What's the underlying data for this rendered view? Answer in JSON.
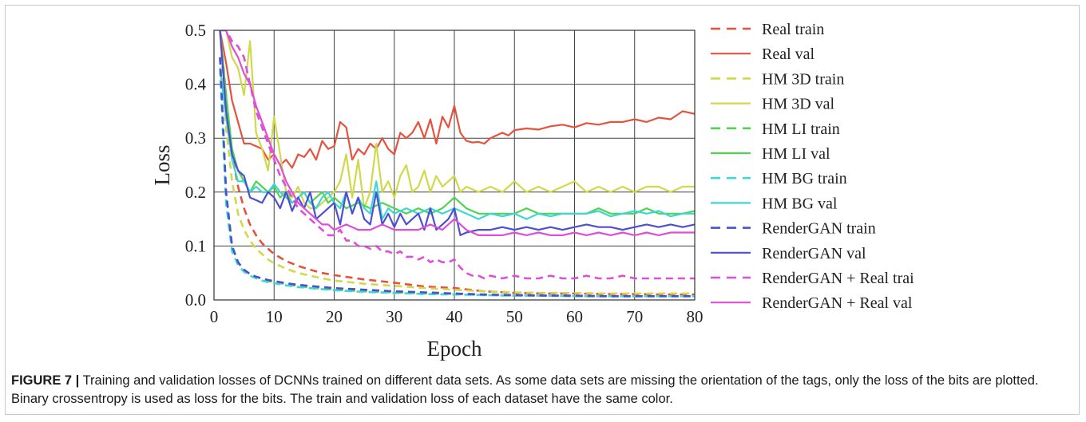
{
  "chart_data": {
    "type": "line",
    "xlabel": "Epoch",
    "ylabel": "Loss",
    "xlim": [
      0,
      80
    ],
    "ylim": [
      0,
      0.5
    ],
    "xticks": [
      0,
      10,
      20,
      30,
      40,
      50,
      60,
      70,
      80
    ],
    "yticks": [
      0.0,
      0.1,
      0.2,
      0.3,
      0.4,
      0.5
    ],
    "grid": true,
    "legend_position": "right-outside",
    "series": [
      {
        "name": "Real train",
        "style": "dashed",
        "color": "#e5533f",
        "x": [
          1,
          2,
          3,
          4,
          5,
          6,
          7,
          8,
          9,
          10,
          12,
          14,
          16,
          18,
          20,
          25,
          30,
          35,
          40,
          45,
          50,
          55,
          60,
          65,
          70,
          75,
          80
        ],
        "y": [
          0.5,
          0.38,
          0.27,
          0.21,
          0.17,
          0.14,
          0.12,
          0.105,
          0.095,
          0.085,
          0.072,
          0.063,
          0.056,
          0.05,
          0.046,
          0.038,
          0.032,
          0.025,
          0.022,
          0.016,
          0.013,
          0.012,
          0.012,
          0.011,
          0.011,
          0.01,
          0.01
        ]
      },
      {
        "name": "Real val",
        "style": "solid",
        "color": "#e5533f",
        "x": [
          1,
          2,
          3,
          4,
          5,
          6,
          7,
          8,
          9,
          10,
          11,
          12,
          13,
          14,
          15,
          16,
          17,
          18,
          19,
          20,
          21,
          22,
          23,
          24,
          25,
          26,
          27,
          28,
          29,
          30,
          31,
          32,
          33,
          34,
          35,
          36,
          37,
          38,
          39,
          40,
          41,
          42,
          43,
          44,
          45,
          46,
          47,
          48,
          49,
          50,
          52,
          54,
          56,
          58,
          60,
          62,
          64,
          66,
          68,
          70,
          72,
          74,
          76,
          78,
          80
        ],
        "y": [
          0.5,
          0.44,
          0.37,
          0.33,
          0.29,
          0.29,
          0.285,
          0.28,
          0.26,
          0.27,
          0.25,
          0.26,
          0.245,
          0.27,
          0.265,
          0.28,
          0.26,
          0.295,
          0.28,
          0.285,
          0.33,
          0.32,
          0.26,
          0.28,
          0.27,
          0.29,
          0.28,
          0.3,
          0.28,
          0.27,
          0.31,
          0.3,
          0.31,
          0.33,
          0.3,
          0.335,
          0.29,
          0.34,
          0.32,
          0.36,
          0.31,
          0.295,
          0.292,
          0.293,
          0.29,
          0.3,
          0.305,
          0.31,
          0.305,
          0.315,
          0.318,
          0.316,
          0.322,
          0.325,
          0.32,
          0.328,
          0.325,
          0.33,
          0.33,
          0.335,
          0.33,
          0.338,
          0.335,
          0.35,
          0.345
        ]
      },
      {
        "name": "HM 3D train",
        "style": "dashed",
        "color": "#cfd94a",
        "x": [
          1,
          2,
          3,
          4,
          5,
          6,
          7,
          8,
          9,
          10,
          12,
          14,
          16,
          18,
          20,
          25,
          30,
          35,
          40,
          45,
          50,
          55,
          60,
          65,
          70,
          75,
          80
        ],
        "y": [
          0.5,
          0.32,
          0.22,
          0.16,
          0.13,
          0.11,
          0.095,
          0.085,
          0.075,
          0.068,
          0.058,
          0.05,
          0.045,
          0.04,
          0.036,
          0.03,
          0.026,
          0.022,
          0.019,
          0.016,
          0.014,
          0.013,
          0.013,
          0.012,
          0.012,
          0.012,
          0.012
        ]
      },
      {
        "name": "HM 3D val",
        "style": "solid",
        "color": "#cfd94a",
        "x": [
          1,
          2,
          3,
          4,
          5,
          6,
          7,
          8,
          9,
          10,
          11,
          12,
          13,
          14,
          15,
          16,
          17,
          18,
          19,
          20,
          21,
          22,
          23,
          24,
          25,
          26,
          27,
          28,
          29,
          30,
          31,
          32,
          33,
          34,
          35,
          36,
          37,
          38,
          39,
          40,
          41,
          42,
          44,
          46,
          48,
          50,
          52,
          54,
          56,
          58,
          60,
          62,
          64,
          66,
          68,
          70,
          72,
          74,
          76,
          78,
          80
        ],
        "y": [
          0.5,
          0.5,
          0.45,
          0.43,
          0.38,
          0.48,
          0.31,
          0.28,
          0.24,
          0.34,
          0.27,
          0.2,
          0.19,
          0.21,
          0.18,
          0.17,
          0.17,
          0.18,
          0.19,
          0.2,
          0.22,
          0.27,
          0.19,
          0.26,
          0.17,
          0.2,
          0.29,
          0.2,
          0.22,
          0.19,
          0.23,
          0.25,
          0.2,
          0.21,
          0.24,
          0.2,
          0.23,
          0.21,
          0.22,
          0.23,
          0.2,
          0.21,
          0.2,
          0.21,
          0.2,
          0.22,
          0.2,
          0.21,
          0.2,
          0.21,
          0.22,
          0.2,
          0.21,
          0.2,
          0.21,
          0.2,
          0.21,
          0.21,
          0.2,
          0.21,
          0.21
        ]
      },
      {
        "name": "HM LI train",
        "style": "dashed",
        "color": "#4fd44f",
        "x": [
          1,
          2,
          3,
          4,
          5,
          6,
          7,
          8,
          9,
          10,
          12,
          14,
          16,
          18,
          20,
          25,
          30,
          35,
          40,
          45,
          50,
          55,
          60,
          65,
          70,
          75,
          80
        ],
        "y": [
          0.45,
          0.2,
          0.1,
          0.07,
          0.055,
          0.048,
          0.043,
          0.039,
          0.035,
          0.033,
          0.029,
          0.026,
          0.023,
          0.021,
          0.019,
          0.016,
          0.014,
          0.012,
          0.011,
          0.009,
          0.008,
          0.008,
          0.007,
          0.007,
          0.007,
          0.007,
          0.007
        ]
      },
      {
        "name": "HM LI val",
        "style": "solid",
        "color": "#4fd44f",
        "x": [
          1,
          2,
          3,
          4,
          5,
          6,
          7,
          8,
          9,
          10,
          11,
          12,
          13,
          14,
          15,
          16,
          17,
          18,
          19,
          20,
          22,
          24,
          26,
          28,
          30,
          32,
          34,
          36,
          38,
          40,
          42,
          44,
          46,
          48,
          50,
          52,
          54,
          56,
          58,
          60,
          62,
          64,
          66,
          68,
          70,
          72,
          74,
          76,
          78,
          80
        ],
        "y": [
          0.5,
          0.38,
          0.28,
          0.24,
          0.22,
          0.2,
          0.22,
          0.21,
          0.2,
          0.21,
          0.19,
          0.2,
          0.18,
          0.19,
          0.2,
          0.18,
          0.19,
          0.2,
          0.18,
          0.19,
          0.17,
          0.18,
          0.17,
          0.18,
          0.17,
          0.16,
          0.17,
          0.16,
          0.17,
          0.19,
          0.17,
          0.16,
          0.16,
          0.16,
          0.16,
          0.17,
          0.16,
          0.16,
          0.16,
          0.16,
          0.16,
          0.17,
          0.16,
          0.16,
          0.16,
          0.17,
          0.16,
          0.16,
          0.16,
          0.165
        ]
      },
      {
        "name": "HM BG train",
        "style": "dashed",
        "color": "#3fd6d6",
        "x": [
          1,
          2,
          3,
          4,
          5,
          6,
          7,
          8,
          9,
          10,
          12,
          14,
          16,
          18,
          20,
          25,
          30,
          35,
          40,
          45,
          50,
          55,
          60,
          65,
          70,
          75,
          80
        ],
        "y": [
          0.43,
          0.18,
          0.09,
          0.065,
          0.052,
          0.045,
          0.04,
          0.036,
          0.033,
          0.031,
          0.027,
          0.024,
          0.022,
          0.02,
          0.018,
          0.015,
          0.013,
          0.011,
          0.01,
          0.009,
          0.008,
          0.008,
          0.007,
          0.007,
          0.007,
          0.007,
          0.007
        ]
      },
      {
        "name": "HM BG val",
        "style": "solid",
        "color": "#3fd6d6",
        "x": [
          1,
          2,
          3,
          4,
          5,
          6,
          7,
          8,
          9,
          10,
          11,
          12,
          13,
          14,
          15,
          16,
          17,
          18,
          19,
          20,
          21,
          22,
          23,
          24,
          25,
          26,
          27,
          28,
          29,
          30,
          32,
          34,
          36,
          38,
          40,
          42,
          44,
          46,
          48,
          50,
          52,
          54,
          56,
          58,
          60,
          62,
          64,
          66,
          68,
          70,
          72,
          74,
          76,
          78,
          80
        ],
        "y": [
          0.43,
          0.34,
          0.26,
          0.22,
          0.22,
          0.2,
          0.21,
          0.2,
          0.2,
          0.215,
          0.2,
          0.19,
          0.18,
          0.19,
          0.2,
          0.18,
          0.17,
          0.19,
          0.2,
          0.18,
          0.17,
          0.2,
          0.16,
          0.19,
          0.17,
          0.16,
          0.22,
          0.15,
          0.17,
          0.16,
          0.17,
          0.16,
          0.17,
          0.16,
          0.17,
          0.16,
          0.15,
          0.16,
          0.155,
          0.16,
          0.15,
          0.16,
          0.155,
          0.16,
          0.16,
          0.16,
          0.165,
          0.155,
          0.16,
          0.165,
          0.16,
          0.165,
          0.155,
          0.16,
          0.16
        ]
      },
      {
        "name": "RenderGAN train",
        "style": "dashed",
        "color": "#4b4fd1",
        "x": [
          1,
          2,
          3,
          4,
          5,
          6,
          7,
          8,
          9,
          10,
          12,
          14,
          16,
          18,
          20,
          25,
          30,
          35,
          40,
          45,
          50,
          55,
          60,
          65,
          70,
          75,
          80
        ],
        "y": [
          0.45,
          0.2,
          0.1,
          0.07,
          0.056,
          0.048,
          0.043,
          0.04,
          0.037,
          0.035,
          0.031,
          0.028,
          0.026,
          0.024,
          0.022,
          0.019,
          0.016,
          0.014,
          0.012,
          0.01,
          0.009,
          0.008,
          0.008,
          0.007,
          0.007,
          0.007,
          0.007
        ]
      },
      {
        "name": "RenderGAN val",
        "style": "solid",
        "color": "#4b4fd1",
        "x": [
          1,
          2,
          3,
          4,
          5,
          6,
          7,
          8,
          9,
          10,
          11,
          12,
          13,
          14,
          15,
          16,
          17,
          18,
          19,
          20,
          21,
          22,
          23,
          24,
          25,
          26,
          27,
          28,
          29,
          30,
          31,
          32,
          33,
          34,
          35,
          36,
          37,
          38,
          39,
          40,
          41,
          42,
          44,
          46,
          48,
          50,
          52,
          54,
          56,
          58,
          60,
          62,
          64,
          66,
          68,
          70,
          72,
          74,
          76,
          78,
          80
        ],
        "y": [
          0.5,
          0.35,
          0.27,
          0.24,
          0.23,
          0.19,
          0.185,
          0.18,
          0.2,
          0.19,
          0.17,
          0.2,
          0.165,
          0.19,
          0.17,
          0.2,
          0.15,
          0.16,
          0.17,
          0.18,
          0.14,
          0.2,
          0.16,
          0.19,
          0.15,
          0.14,
          0.2,
          0.14,
          0.16,
          0.135,
          0.16,
          0.14,
          0.15,
          0.16,
          0.13,
          0.17,
          0.13,
          0.14,
          0.15,
          0.17,
          0.12,
          0.125,
          0.13,
          0.13,
          0.135,
          0.13,
          0.135,
          0.13,
          0.135,
          0.13,
          0.135,
          0.14,
          0.135,
          0.135,
          0.13,
          0.135,
          0.14,
          0.135,
          0.14,
          0.135,
          0.14
        ]
      },
      {
        "name": "RenderGAN + Real train",
        "style": "dashed",
        "color": "#dd4fd8",
        "x": [
          1,
          2,
          3,
          4,
          5,
          6,
          7,
          8,
          9,
          10,
          11,
          12,
          13,
          14,
          15,
          16,
          17,
          18,
          19,
          20,
          21,
          22,
          23,
          24,
          25,
          26,
          27,
          28,
          29,
          30,
          31,
          32,
          33,
          34,
          35,
          36,
          37,
          38,
          39,
          40,
          41,
          42,
          43,
          44,
          45,
          46,
          48,
          50,
          52,
          54,
          56,
          58,
          60,
          62,
          64,
          66,
          68,
          70,
          72,
          74,
          76,
          78,
          80
        ],
        "y": [
          0.5,
          0.5,
          0.48,
          0.47,
          0.45,
          0.4,
          0.35,
          0.32,
          0.29,
          0.26,
          0.23,
          0.21,
          0.19,
          0.17,
          0.16,
          0.15,
          0.14,
          0.13,
          0.12,
          0.12,
          0.13,
          0.11,
          0.11,
          0.1,
          0.1,
          0.095,
          0.1,
          0.09,
          0.09,
          0.085,
          0.09,
          0.08,
          0.08,
          0.075,
          0.08,
          0.07,
          0.075,
          0.07,
          0.07,
          0.075,
          0.06,
          0.05,
          0.045,
          0.045,
          0.04,
          0.045,
          0.04,
          0.045,
          0.04,
          0.04,
          0.045,
          0.04,
          0.04,
          0.045,
          0.04,
          0.04,
          0.045,
          0.04,
          0.04,
          0.04,
          0.04,
          0.04,
          0.04
        ]
      },
      {
        "name": "RenderGAN + Real val",
        "style": "solid",
        "color": "#dd4fd8",
        "x": [
          1,
          2,
          3,
          4,
          5,
          6,
          7,
          8,
          9,
          10,
          11,
          12,
          13,
          14,
          15,
          16,
          17,
          18,
          19,
          20,
          22,
          24,
          26,
          28,
          30,
          32,
          34,
          36,
          38,
          40,
          42,
          44,
          46,
          48,
          50,
          52,
          54,
          56,
          58,
          60,
          62,
          64,
          66,
          68,
          70,
          72,
          74,
          76,
          78,
          80
        ],
        "y": [
          0.5,
          0.5,
          0.47,
          0.45,
          0.42,
          0.4,
          0.36,
          0.33,
          0.3,
          0.27,
          0.25,
          0.22,
          0.2,
          0.18,
          0.17,
          0.16,
          0.15,
          0.14,
          0.14,
          0.13,
          0.14,
          0.13,
          0.13,
          0.14,
          0.13,
          0.13,
          0.13,
          0.14,
          0.13,
          0.15,
          0.13,
          0.12,
          0.12,
          0.12,
          0.125,
          0.12,
          0.125,
          0.12,
          0.12,
          0.125,
          0.12,
          0.125,
          0.12,
          0.125,
          0.12,
          0.125,
          0.12,
          0.125,
          0.125,
          0.125
        ]
      }
    ]
  },
  "legend": [
    {
      "label": "Real train",
      "style": "dashed",
      "color": "#e5533f"
    },
    {
      "label": "Real val",
      "style": "solid",
      "color": "#e5533f"
    },
    {
      "label": "HM 3D train",
      "style": "dashed",
      "color": "#cfd94a"
    },
    {
      "label": "HM 3D val",
      "style": "solid",
      "color": "#cfd94a"
    },
    {
      "label": "HM LI train",
      "style": "dashed",
      "color": "#4fd44f"
    },
    {
      "label": "HM LI val",
      "style": "solid",
      "color": "#4fd44f"
    },
    {
      "label": "HM BG train",
      "style": "dashed",
      "color": "#3fd6d6"
    },
    {
      "label": "HM BG val",
      "style": "solid",
      "color": "#3fd6d6"
    },
    {
      "label": "RenderGAN train",
      "style": "dashed",
      "color": "#4b4fd1"
    },
    {
      "label": "RenderGAN val",
      "style": "solid",
      "color": "#4b4fd1"
    },
    {
      "label": "RenderGAN + Real trai",
      "style": "dashed",
      "color": "#dd4fd8"
    },
    {
      "label": "RenderGAN + Real val",
      "style": "solid",
      "color": "#dd4fd8"
    }
  ],
  "caption": {
    "label": "FIGURE 7 |",
    "text": " Training and validation losses of DCNNs trained on different data sets. As some data sets are missing the orientation of the tags, only the loss of the bits are plotted. Binary crossentropy is used as loss for the bits. The train and validation loss of each dataset have the same color."
  }
}
